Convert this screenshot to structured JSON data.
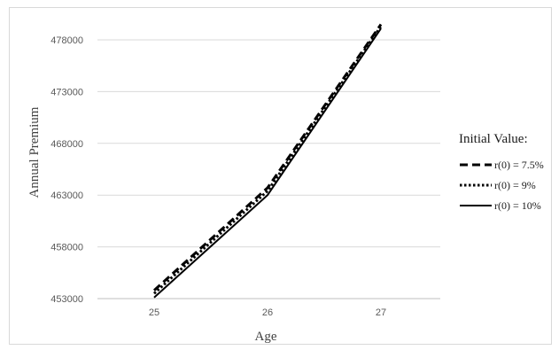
{
  "chart_data": {
    "type": "line",
    "xlabel": "Age",
    "ylabel": "Annual Premium",
    "x": [
      "25",
      "26",
      "27"
    ],
    "ylim": [
      453000,
      478000
    ],
    "yticks": [
      "453000",
      "458000",
      "463000",
      "468000",
      "473000",
      "478000"
    ],
    "grid": true,
    "legend": {
      "title": "Initial Value:",
      "placement": "right"
    },
    "series": [
      {
        "name": "r(0) = 7.5%",
        "values": [
          453800,
          463700,
          479500
        ],
        "style": "dashed"
      },
      {
        "name": "r(0) = 9%",
        "values": [
          453500,
          463400,
          479300
        ],
        "style": "dotted"
      },
      {
        "name": "r(0) = 10%",
        "values": [
          453100,
          463000,
          479100
        ],
        "style": "solid"
      }
    ],
    "colors": {
      "line": "#000000",
      "grid": "#d9d9d9",
      "axis": "#bfbfbf"
    }
  }
}
